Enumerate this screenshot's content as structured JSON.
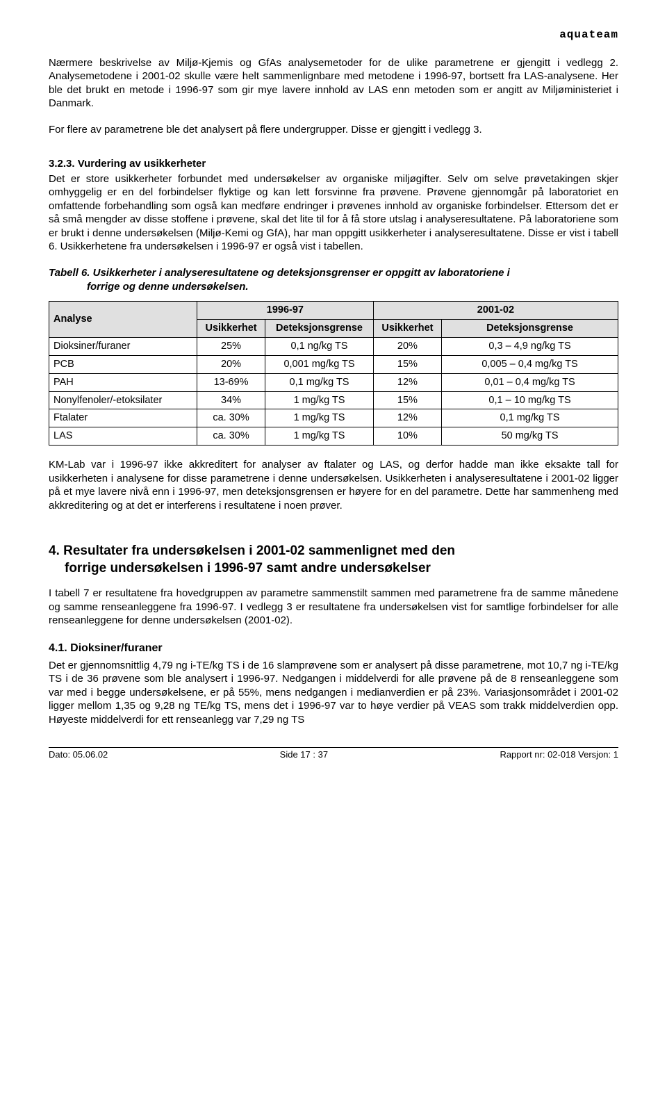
{
  "brand": "aquateam",
  "p1": "Nærmere beskrivelse av Miljø-Kjemis og GfAs analysemetoder for de ulike parametrene er gjengitt i vedlegg 2. Analysemetodene i 2001-02 skulle være helt sammenlignbare med metodene i 1996-97, bortsett fra LAS-analysene. Her ble det brukt en metode i 1996-97 som gir mye lavere innhold av LAS enn metoden som er angitt av Miljøministeriet i Danmark.",
  "p2": "For flere av parametrene ble det analysert på flere undergrupper. Disse er gjengitt i vedlegg 3.",
  "h3_1": "3.2.3.  Vurdering av usikkerheter",
  "p3": "Det er store usikkerheter forbundet med undersøkelser av organiske miljøgifter. Selv om selve prøvetakingen skjer omhyggelig er en del forbindelser flyktige og kan lett forsvinne fra prøvene. Prøvene gjennomgår på laboratoriet en omfattende forbehandling som også kan medføre endringer i prøvenes innhold av organiske forbindelser. Ettersom det er så små mengder av disse stoffene i prøvene, skal det lite til for å få store utslag i analyseresultatene. På laboratoriene som er brukt i denne undersøkelsen (Miljø-Kemi og GfA), har man oppgitt usikkerheter i analyseresultatene. Disse er vist i tabell 6. Usikkerhetene fra undersøkelsen i 1996-97 er også vist i tabellen.",
  "table_caption_line1": "Tabell 6. Usikkerheter i analyseresultatene og deteksjonsgrenser er oppgitt av laboratoriene i",
  "table_caption_line2": "forrige og denne undersøkelsen.",
  "table": {
    "col_analyse": "Analyse",
    "col_period1": "1996-97",
    "col_period2": "2001-02",
    "col_usikkerhet": "Usikkerhet",
    "col_deteksjon": "Deteksjonsgrense",
    "rows": [
      {
        "a": "Dioksiner/furaner",
        "u1": "25%",
        "d1": "0,1 ng/kg TS",
        "u2": "20%",
        "d2": "0,3 – 4,9 ng/kg TS"
      },
      {
        "a": "PCB",
        "u1": "20%",
        "d1": "0,001 mg/kg TS",
        "u2": "15%",
        "d2": "0,005 – 0,4 mg/kg TS"
      },
      {
        "a": "PAH",
        "u1": "13-69%",
        "d1": "0,1 mg/kg TS",
        "u2": "12%",
        "d2": "0,01 – 0,4 mg/kg TS"
      },
      {
        "a": "Nonylfenoler/-etoksilater",
        "u1": "34%",
        "d1": "1 mg/kg TS",
        "u2": "15%",
        "d2": "0,1 – 10 mg/kg TS"
      },
      {
        "a": "Ftalater",
        "u1": "ca. 30%",
        "d1": "1 mg/kg TS",
        "u2": "12%",
        "d2": "0,1 mg/kg TS"
      },
      {
        "a": "LAS",
        "u1": "ca. 30%",
        "d1": "1 mg/kg TS",
        "u2": "10%",
        "d2": "50 mg/kg TS"
      }
    ]
  },
  "p4": "KM-Lab var i 1996-97 ikke akkreditert for analyser av ftalater og LAS, og derfor hadde man ikke eksakte tall for usikkerheten i analysene for disse parametrene i denne undersøkelsen. Usikkerheten i analyseresultatene i 2001-02 ligger på et mye lavere nivå enn i 1996-97, men deteksjonsgrensen er høyere for en del parametre. Dette har sammenheng med akkreditering og at det er interferens i resultatene i noen prøver.",
  "h1_num": "4.",
  "h1_line1": "Resultater fra undersøkelsen i 2001-02 sammenlignet med den",
  "h1_line2": "forrige undersøkelsen i 1996-97 samt andre undersøkelser",
  "p5": "I tabell 7 er resultatene fra hovedgruppen av parametre sammenstilt sammen med parametrene fra de samme månedene og samme renseanleggene fra 1996-97. I vedlegg 3 er resultatene fra undersøkelsen vist for samtlige forbindelser for alle renseanleggene for denne undersøkelsen (2001-02).",
  "h2_1": "4.1.   Dioksiner/furaner",
  "p6": "Det er gjennomsnittlig 4,79 ng i-TE/kg TS i de 16 slamprøvene som er analysert på disse parametrene, mot 10,7 ng i-TE/kg TS i de 36 prøvene som ble analysert i 1996-97. Nedgangen i middelverdi for alle prøvene på de 8 renseanleggene som var med i begge undersøkelsene, er på 55%, mens nedgangen i medianverdien er på 23%. Variasjonsområdet i 2001-02 ligger mellom 1,35 og 9,28 ng TE/kg TS, mens det i 1996-97 var to høye verdier på VEAS som trakk middelverdien opp. Høyeste middelverdi for ett renseanlegg var 7,29 ng TS",
  "footer": {
    "left": "Dato: 05.06.02",
    "center": "Side 17 : 37",
    "right": "Rapport nr: 02-018  Versjon: 1"
  },
  "colors": {
    "header_bg": "#e0e0e0",
    "border": "#000000",
    "text": "#000000",
    "background": "#ffffff"
  },
  "col_widths": [
    "26%",
    "12%",
    "19%",
    "12%",
    "31%"
  ]
}
